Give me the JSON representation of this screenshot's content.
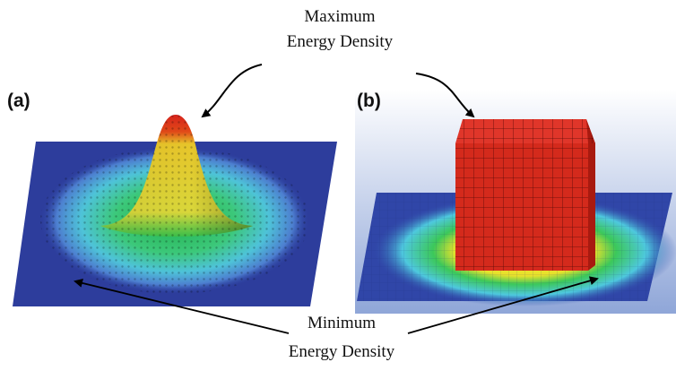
{
  "panels": {
    "a": "(a)",
    "b": "(b)"
  },
  "annotations": {
    "maximum": [
      "Maximum",
      "Energy Density"
    ],
    "minimum": [
      "Minimum",
      "Energy Density"
    ]
  }
}
